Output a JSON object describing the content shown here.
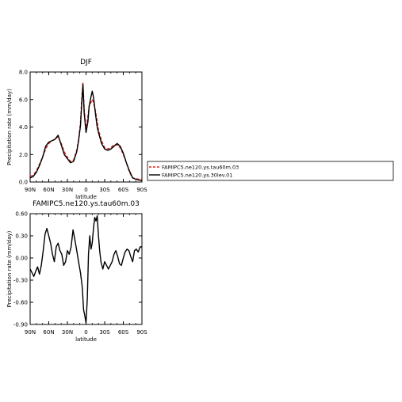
{
  "chart_data": [
    {
      "type": "line",
      "title": "DJF",
      "xlabel": "latitude",
      "ylabel": "Precipitation rate (mm/day)",
      "xlim": [
        -90,
        90
      ],
      "ylim": [
        0,
        8
      ],
      "x_tick_values": [
        -90,
        -60,
        -30,
        0,
        30,
        60,
        90
      ],
      "x_tick_labels": [
        "90N",
        "60N",
        "30N",
        "0",
        "30S",
        "60S",
        "90S"
      ],
      "y_tick_values": [
        0,
        2,
        4,
        6,
        8
      ],
      "y_tick_labels": [
        "0.0",
        "2.0",
        "4.0",
        "6.0",
        "8.0"
      ],
      "grid": false,
      "legend_position": "right",
      "x": [
        -90,
        -85,
        -80,
        -75,
        -70,
        -65,
        -60,
        -55,
        -50,
        -45,
        -40,
        -35,
        -30,
        -25,
        -20,
        -15,
        -12,
        -9,
        -7,
        -5,
        -3,
        0,
        3,
        5,
        8,
        10,
        12,
        15,
        18,
        20,
        25,
        30,
        35,
        40,
        45,
        50,
        55,
        60,
        65,
        70,
        75,
        80,
        85,
        90
      ],
      "series": [
        {
          "name": "FAMIPC5.ne120.ys.tau60m.03",
          "color": "#e0201b",
          "dashed": true,
          "values": [
            0.4,
            0.5,
            0.8,
            1.3,
            1.8,
            2.4,
            2.8,
            3.0,
            3.1,
            3.3,
            2.8,
            2.2,
            1.8,
            1.5,
            1.6,
            2.3,
            3.1,
            4.3,
            6.0,
            7.2,
            5.3,
            3.8,
            4.8,
            5.5,
            5.8,
            6.0,
            5.8,
            5.2,
            4.4,
            3.8,
            3.0,
            2.5,
            2.4,
            2.5,
            2.7,
            2.7,
            2.5,
            2.0,
            1.4,
            0.7,
            0.3,
            0.25,
            0.2,
            0.2
          ]
        },
        {
          "name": "FAMIPC5.ne120.ys.30lev.01",
          "color": "#000000",
          "dashed": false,
          "values": [
            0.3,
            0.4,
            0.7,
            1.2,
            1.8,
            2.6,
            2.9,
            3.0,
            3.1,
            3.4,
            2.7,
            2.0,
            1.7,
            1.4,
            1.5,
            2.2,
            3.0,
            4.1,
            5.6,
            7.1,
            5.0,
            3.6,
            4.4,
            5.5,
            6.2,
            6.6,
            6.2,
            5.0,
            4.0,
            3.6,
            2.8,
            2.4,
            2.3,
            2.4,
            2.6,
            2.8,
            2.6,
            2.1,
            1.4,
            0.8,
            0.3,
            0.2,
            0.15,
            0.1
          ]
        }
      ]
    },
    {
      "type": "line",
      "title": "FAMIPC5.ne120.ys.tau60m.03",
      "xlabel": "latitude",
      "ylabel": "Precipitation rate (mm/day)",
      "xlim": [
        -90,
        90
      ],
      "ylim": [
        -0.9,
        0.6
      ],
      "x_tick_values": [
        -90,
        -60,
        -30,
        0,
        30,
        60,
        90
      ],
      "x_tick_labels": [
        "90N",
        "60N",
        "30N",
        "0",
        "30S",
        "60S",
        "90S"
      ],
      "y_tick_values": [
        0.6,
        0.3,
        0.0,
        -0.3,
        -0.6,
        -0.9
      ],
      "y_tick_labels": [
        "0.60",
        "0.30",
        "0.00",
        "-0.30",
        "-0.60",
        "-0.90"
      ],
      "grid": false,
      "x": [
        -90,
        -87,
        -84,
        -81,
        -78,
        -75,
        -72,
        -69,
        -66,
        -63,
        -60,
        -57,
        -54,
        -51,
        -48,
        -45,
        -42,
        -39,
        -36,
        -33,
        -30,
        -27,
        -24,
        -21,
        -18,
        -15,
        -12,
        -9,
        -6,
        -4,
        -2,
        0,
        2,
        4,
        6,
        8,
        10,
        12,
        14,
        16,
        18,
        20,
        22,
        24,
        27,
        30,
        33,
        36,
        39,
        42,
        45,
        48,
        51,
        54,
        57,
        60,
        63,
        66,
        69,
        72,
        75,
        78,
        81,
        84,
        87,
        90
      ],
      "series": [
        {
          "name": "",
          "color": "#000000",
          "dashed": false,
          "values": [
            -0.15,
            -0.2,
            -0.25,
            -0.18,
            -0.12,
            -0.22,
            -0.1,
            0.1,
            0.32,
            0.4,
            0.3,
            0.2,
            0.05,
            -0.05,
            0.15,
            0.2,
            0.1,
            0.05,
            -0.1,
            -0.05,
            0.1,
            0.05,
            0.15,
            0.38,
            0.25,
            0.1,
            -0.05,
            -0.2,
            -0.4,
            -0.7,
            -0.78,
            -0.88,
            -0.55,
            0.05,
            0.3,
            0.12,
            0.2,
            0.4,
            0.55,
            0.5,
            0.57,
            0.3,
            0.1,
            -0.05,
            -0.15,
            -0.05,
            -0.1,
            -0.15,
            -0.1,
            -0.05,
            0.05,
            0.1,
            0.02,
            -0.08,
            -0.1,
            0.0,
            0.08,
            0.12,
            0.1,
            0.02,
            -0.05,
            0.1,
            0.12,
            0.08,
            0.15,
            0.15
          ]
        }
      ]
    }
  ]
}
